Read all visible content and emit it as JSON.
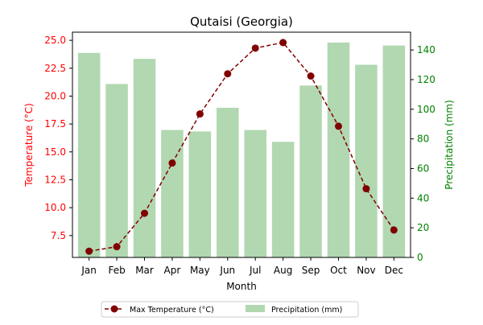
{
  "chart_data": {
    "type": "bar",
    "title": "Qutaisi (Georgia)",
    "xlabel": "Month",
    "categories": [
      "Jan",
      "Feb",
      "Mar",
      "Apr",
      "May",
      "Jun",
      "Jul",
      "Aug",
      "Sep",
      "Oct",
      "Nov",
      "Dec"
    ],
    "axes": {
      "y_left": {
        "label": "Temperature (°C)",
        "color": "#ff0000",
        "range": [
          5.54,
          25.73
        ],
        "ticks": [
          "7.5",
          "10.0",
          "12.5",
          "15.0",
          "17.5",
          "20.0",
          "22.5",
          "25.0"
        ],
        "tick_values": [
          7.5,
          10.0,
          12.5,
          15.0,
          17.5,
          20.0,
          22.5,
          25.0
        ]
      },
      "y_right": {
        "label": "Precipitation (mm)",
        "color": "#008000",
        "range": [
          0,
          152
        ],
        "ticks": [
          "0",
          "20",
          "40",
          "60",
          "80",
          "100",
          "120",
          "140"
        ],
        "tick_values": [
          0,
          20,
          40,
          60,
          80,
          100,
          120,
          140
        ]
      }
    },
    "series": [
      {
        "name": "Max Temperature (°C)",
        "type": "line",
        "axis": "y_left",
        "color": "#800000",
        "style": "dashed",
        "marker": "circle",
        "values": [
          6.1,
          6.5,
          9.5,
          14.0,
          18.4,
          22.0,
          24.3,
          24.8,
          21.8,
          17.3,
          11.7,
          8.0
        ]
      },
      {
        "name": "Precipitation (mm)",
        "type": "bar",
        "axis": "y_right",
        "color": "#b1d8b1",
        "values": [
          138,
          117,
          134,
          86,
          85,
          101,
          86,
          78,
          116,
          145,
          130,
          143
        ]
      }
    ],
    "legend": {
      "position": "bottom-center",
      "items": [
        "Max Temperature (°C)",
        "Precipitation (mm)"
      ]
    },
    "grid": false
  }
}
